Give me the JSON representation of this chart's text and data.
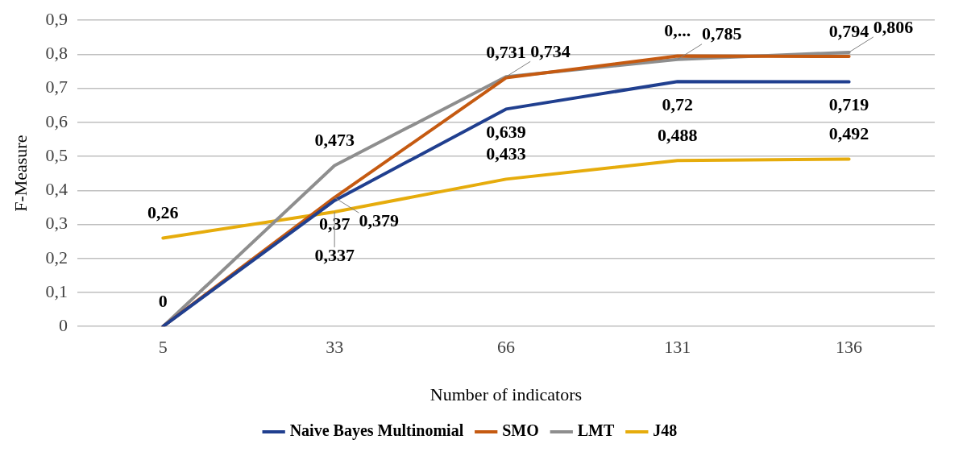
{
  "chart_data": {
    "type": "line",
    "xlabel": "Number of indicators",
    "ylabel": "F-Measure",
    "categories": [
      "5",
      "33",
      "66",
      "131",
      "136"
    ],
    "series": [
      {
        "name": "Naive Bayes Multinomial",
        "color": "#203f8f",
        "values": [
          0,
          0.37,
          0.639,
          0.72,
          0.719
        ],
        "value_labels": [
          "0",
          "0,37",
          "0,639",
          "0,72",
          "0,719"
        ]
      },
      {
        "name": "SMO",
        "color": "#c55a11",
        "values": [
          0,
          0.379,
          0.731,
          0.795,
          0.794
        ],
        "value_labels": [
          null,
          "0,379",
          "0,731",
          "0,...",
          "0,794"
        ]
      },
      {
        "name": "LMT",
        "color": "#8e8e8e",
        "values": [
          0,
          0.473,
          0.734,
          0.785,
          0.806
        ],
        "value_labels": [
          null,
          "0,473",
          "0,734",
          "0,785",
          "0,806"
        ]
      },
      {
        "name": "J48",
        "color": "#e6ac0c",
        "values": [
          0.26,
          0.337,
          0.433,
          0.488,
          0.492
        ],
        "value_labels": [
          "0,26",
          "0,337",
          "0,433",
          "0,488",
          "0,492"
        ]
      }
    ],
    "ylim": [
      0,
      0.9
    ],
    "yticks": [
      {
        "value": 0,
        "label": "0"
      },
      {
        "value": 0.1,
        "label": "0,1"
      },
      {
        "value": 0.2,
        "label": "0,2"
      },
      {
        "value": 0.3,
        "label": "0,3"
      },
      {
        "value": 0.4,
        "label": "0,4"
      },
      {
        "value": 0.5,
        "label": "0,5"
      },
      {
        "value": 0.6,
        "label": "0,6"
      },
      {
        "value": 0.7,
        "label": "0,7"
      },
      {
        "value": 0.8,
        "label": "0,8"
      },
      {
        "value": 0.9,
        "label": "0,9"
      }
    ],
    "grid": "y",
    "legend": "bottom",
    "marker": "none",
    "line_style": "solid"
  }
}
